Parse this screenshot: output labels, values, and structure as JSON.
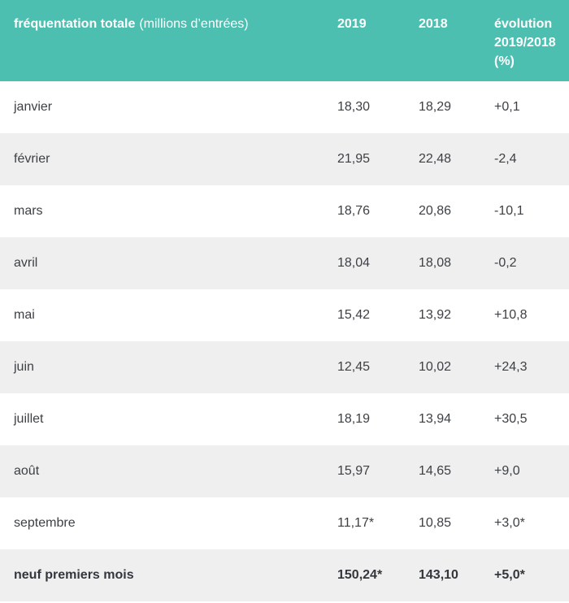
{
  "colors": {
    "header_bg": "#4cbfb1",
    "header_text": "#ffffff",
    "row_bg": "#ffffff",
    "row_alt_bg": "#efefef",
    "body_text": "#3d4045"
  },
  "header": {
    "title_bold": "fréquentation totale",
    "title_normal": "(millions d’entrées)",
    "col_2019": "2019",
    "col_2018": "2018",
    "col_evolution": "évolution 2019/2018 (%)"
  },
  "rows": [
    {
      "label": "janvier",
      "v2019": "18,30",
      "v2018": "18,29",
      "evolution": "+0,1",
      "total": false
    },
    {
      "label": "février",
      "v2019": "21,95",
      "v2018": "22,48",
      "evolution": "-2,4",
      "total": false
    },
    {
      "label": "mars",
      "v2019": "18,76",
      "v2018": "20,86",
      "evolution": "-10,1",
      "total": false
    },
    {
      "label": "avril",
      "v2019": "18,04",
      "v2018": "18,08",
      "evolution": "-0,2",
      "total": false
    },
    {
      "label": "mai",
      "v2019": "15,42",
      "v2018": "13,92",
      "evolution": "+10,8",
      "total": false
    },
    {
      "label": "juin",
      "v2019": "12,45",
      "v2018": "10,02",
      "evolution": "+24,3",
      "total": false
    },
    {
      "label": "juillet",
      "v2019": "18,19",
      "v2018": "13,94",
      "evolution": "+30,5",
      "total": false
    },
    {
      "label": "août",
      "v2019": "15,97",
      "v2018": "14,65",
      "evolution": "+9,0",
      "total": false
    },
    {
      "label": "septembre",
      "v2019": "11,17*",
      "v2018": "10,85",
      "evolution": "+3,0*",
      "total": false
    },
    {
      "label": "neuf premiers mois",
      "v2019": "150,24*",
      "v2018": "143,10",
      "evolution": "+5,0*",
      "total": true
    }
  ],
  "chart_data": {
    "type": "table",
    "title": "fréquentation totale (millions d’entrées)",
    "columns": [
      "fréquentation totale (millions d’entrées)",
      "2019",
      "2018",
      "évolution 2019/2018 (%)"
    ],
    "categories": [
      "janvier",
      "février",
      "mars",
      "avril",
      "mai",
      "juin",
      "juillet",
      "août",
      "septembre"
    ],
    "series": [
      {
        "name": "2019",
        "values": [
          18.3,
          21.95,
          18.76,
          18.04,
          15.42,
          12.45,
          18.19,
          15.97,
          11.17
        ]
      },
      {
        "name": "2018",
        "values": [
          18.29,
          22.48,
          20.86,
          18.08,
          13.92,
          10.02,
          13.94,
          14.65,
          10.85
        ]
      },
      {
        "name": "évolution 2019/2018 (%)",
        "values": [
          0.1,
          -2.4,
          -10.1,
          -0.2,
          10.8,
          24.3,
          30.5,
          9.0,
          3.0
        ]
      }
    ],
    "total_row": {
      "label": "neuf premiers mois",
      "v2019": 150.24,
      "v2018": 143.1,
      "evolution_pct": 5.0
    }
  }
}
